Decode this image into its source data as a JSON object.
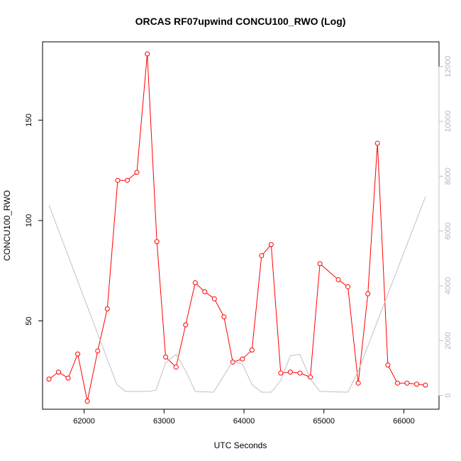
{
  "chart_data": {
    "type": "line",
    "title": "ORCAS RF07upwind CONCU100_RWO (Log)",
    "xlabel": "UTC Seconds",
    "ylabel": "CONCU100_RWO",
    "xlim": [
      61480,
      66440
    ],
    "ylim": [
      6,
      189
    ],
    "y2lim": [
      -500,
      12900
    ],
    "x_ticks": [
      62000,
      63000,
      64000,
      65000,
      66000
    ],
    "y_ticks": [
      50,
      100,
      150
    ],
    "y2_ticks": [
      0,
      2000,
      4000,
      6000,
      8000,
      10000,
      12000
    ],
    "grid": false,
    "legend": "none",
    "colors": {
      "primary": "#ff0000",
      "secondary": "#c0c0c0"
    },
    "series": [
      {
        "color": "#ff0000",
        "axis": "left",
        "markers": true,
        "x": [
          61560,
          61680,
          61800,
          61920,
          62040,
          62170,
          62290,
          62420,
          62540,
          62660,
          62790,
          62910,
          63020,
          63150,
          63270,
          63390,
          63510,
          63630,
          63750,
          63860,
          63980,
          64100,
          64220,
          64340,
          64460,
          64580,
          64700,
          64830,
          64950,
          65180,
          65300,
          65430,
          65550,
          65670,
          65800,
          65920,
          66040,
          66160,
          66270
        ],
        "values": [
          21,
          24.5,
          21.5,
          33.5,
          10,
          35,
          56,
          120,
          120,
          124,
          183,
          89.5,
          32,
          27,
          48,
          69,
          64.5,
          61,
          52,
          29.5,
          31,
          35.5,
          82.5,
          88,
          24,
          24.5,
          24,
          22,
          78.5,
          70.5,
          67,
          19,
          63.5,
          138.5,
          28,
          19,
          19,
          18.5,
          18
        ]
      },
      {
        "color": "#c0c0c0",
        "axis": "right",
        "markers": false,
        "x": [
          61560,
          62410,
          62520,
          62810,
          62900,
          63020,
          63150,
          63270,
          63390,
          63620,
          63860,
          63980,
          64100,
          64220,
          64340,
          64460,
          64580,
          64700,
          64830,
          64950,
          65300,
          65430,
          66270
        ],
        "values": [
          6950,
          400,
          150,
          150,
          200,
          1200,
          1500,
          900,
          150,
          120,
          1250,
          1150,
          400,
          120,
          120,
          550,
          1450,
          1500,
          600,
          150,
          120,
          900,
          7250
        ]
      }
    ]
  }
}
